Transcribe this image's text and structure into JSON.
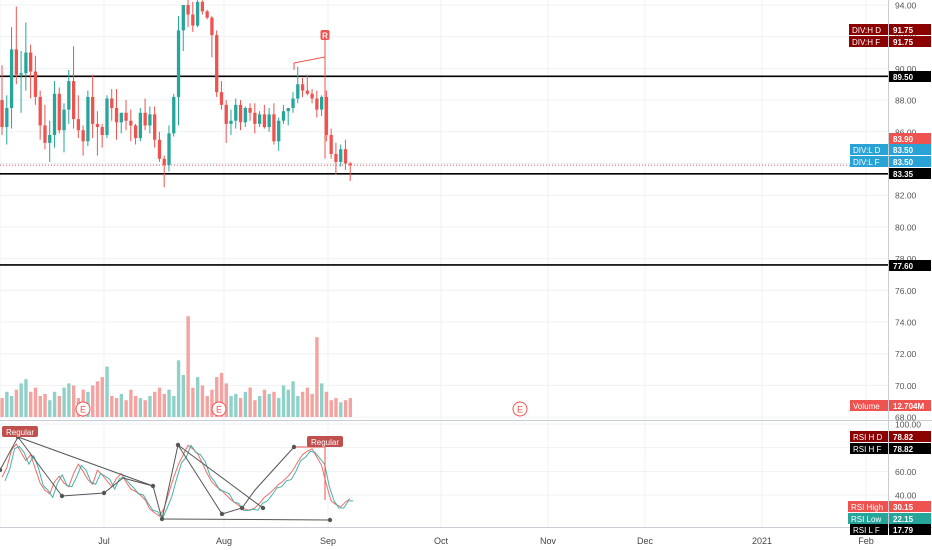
{
  "chart_data": {
    "type": "candlestick",
    "price_axis": {
      "ticks": [
        94,
        92,
        90,
        88,
        86,
        84,
        82,
        80,
        78,
        76,
        74,
        72,
        70,
        68
      ],
      "ylim": [
        67.6,
        94.4
      ]
    },
    "time_axis": [
      "Jul",
      "Aug",
      "Sep",
      "Oct",
      "Nov",
      "Dec",
      "2021",
      "Feb"
    ],
    "candles": [
      [
        88.0,
        90.2,
        85.8,
        86.3
      ],
      [
        86.3,
        88.3,
        85.2,
        87.5
      ],
      [
        87.5,
        92.6,
        86.2,
        91.2
      ],
      [
        91.2,
        93.9,
        89.0,
        89.6
      ],
      [
        89.6,
        91.1,
        87.2,
        89.7
      ],
      [
        89.7,
        92.9,
        88.6,
        91.0
      ],
      [
        91.0,
        91.5,
        88.1,
        89.8
      ],
      [
        89.8,
        90.8,
        87.7,
        88.2
      ],
      [
        88.2,
        88.6,
        85.5,
        86.4
      ],
      [
        86.4,
        87.7,
        84.9,
        85.3
      ],
      [
        85.3,
        86.7,
        84.1,
        85.8
      ],
      [
        85.8,
        89.2,
        85.0,
        88.4
      ],
      [
        88.4,
        88.8,
        85.9,
        86.1
      ],
      [
        86.1,
        87.8,
        84.7,
        87.4
      ],
      [
        87.4,
        89.9,
        86.5,
        89.2
      ],
      [
        89.2,
        91.4,
        86.2,
        86.8
      ],
      [
        86.8,
        88.3,
        85.6,
        86.1
      ],
      [
        86.1,
        86.4,
        84.5,
        85.4
      ],
      [
        85.4,
        88.6,
        85.1,
        88.2
      ],
      [
        88.2,
        89.6,
        85.6,
        86.5
      ],
      [
        86.5,
        87.3,
        84.5,
        86.3
      ],
      [
        86.3,
        86.5,
        85.0,
        85.8
      ],
      [
        85.8,
        88.3,
        85.6,
        88.1
      ],
      [
        88.1,
        88.7,
        86.7,
        87.5
      ],
      [
        87.5,
        88.7,
        85.5,
        86.6
      ],
      [
        86.6,
        87.2,
        85.9,
        87.2
      ],
      [
        87.2,
        88.0,
        86.1,
        86.7
      ],
      [
        86.7,
        87.4,
        85.4,
        86.4
      ],
      [
        86.4,
        86.5,
        85.2,
        85.6
      ],
      [
        85.6,
        87.5,
        85.4,
        87.2
      ],
      [
        87.2,
        88.1,
        86.1,
        86.4
      ],
      [
        86.4,
        87.6,
        85.9,
        87.1
      ],
      [
        87.1,
        87.6,
        85.0,
        85.5
      ],
      [
        85.5,
        86.0,
        84.1,
        84.3
      ],
      [
        84.3,
        84.5,
        82.5,
        83.9
      ],
      [
        83.9,
        86.4,
        83.5,
        85.9
      ],
      [
        85.9,
        88.4,
        85.7,
        88.2
      ],
      [
        88.2,
        93.3,
        86.4,
        92.4
      ],
      [
        92.4,
        94.0,
        91.1,
        94.0
      ],
      [
        94.0,
        94.5,
        92.6,
        93.4
      ],
      [
        93.4,
        94.2,
        92.3,
        92.7
      ],
      [
        92.7,
        94.3,
        92.6,
        94.2
      ],
      [
        94.2,
        94.3,
        93.4,
        93.6
      ],
      [
        93.6,
        93.7,
        93.1,
        93.2
      ],
      [
        93.2,
        93.3,
        90.7,
        92.1
      ],
      [
        92.1,
        92.4,
        88.2,
        88.5
      ],
      [
        88.5,
        89.2,
        87.4,
        87.7
      ],
      [
        87.7,
        88.0,
        85.3,
        86.5
      ],
      [
        86.5,
        87.4,
        85.8,
        86.7
      ],
      [
        86.7,
        88.1,
        86.2,
        87.7
      ],
      [
        87.7,
        88.0,
        86.1,
        86.6
      ],
      [
        86.6,
        87.6,
        86.3,
        87.5
      ],
      [
        87.5,
        87.8,
        86.7,
        87.2
      ],
      [
        87.2,
        87.8,
        85.9,
        86.5
      ],
      [
        86.5,
        87.3,
        86.3,
        87.1
      ],
      [
        87.1,
        87.7,
        86.2,
        86.3
      ],
      [
        86.3,
        87.5,
        86.0,
        87.1
      ],
      [
        87.1,
        87.8,
        85.2,
        85.4
      ],
      [
        85.4,
        86.9,
        84.8,
        86.7
      ],
      [
        86.7,
        87.7,
        86.5,
        87.3
      ],
      [
        87.3,
        87.5,
        86.4,
        87.5
      ],
      [
        87.5,
        88.5,
        87.2,
        88.1
      ],
      [
        88.1,
        90.1,
        87.8,
        89.0
      ],
      [
        89.0,
        89.4,
        88.2,
        88.6
      ],
      [
        88.6,
        89.6,
        88.3,
        88.4
      ],
      [
        88.4,
        88.7,
        87.8,
        88.1
      ],
      [
        88.1,
        88.6,
        86.9,
        87.4
      ],
      [
        87.4,
        88.3,
        87.0,
        88.2
      ],
      [
        88.2,
        88.6,
        85.4,
        85.8
      ],
      [
        85.8,
        86.2,
        84.3,
        84.6
      ],
      [
        84.6,
        85.3,
        83.3,
        84.1
      ],
      [
        84.1,
        85.2,
        83.8,
        84.9
      ],
      [
        84.9,
        85.5,
        83.6,
        84.0
      ],
      [
        84.0,
        84.1,
        82.9,
        83.9
      ]
    ],
    "volume": [
      0.9,
      1.2,
      1.0,
      1.3,
      1.6,
      1.8,
      1.2,
      1.4,
      1.0,
      1.1,
      0.8,
      1.2,
      1.0,
      1.4,
      1.6,
      1.5,
      0.9,
      1.3,
      1.2,
      1.5,
      1.7,
      1.9,
      2.4,
      1.0,
      0.9,
      1.1,
      0.8,
      1.3,
      1.0,
      0.9,
      0.8,
      1.0,
      1.2,
      1.4,
      1.1,
      1.3,
      1.0,
      2.7,
      2.0,
      4.8,
      1.4,
      1.9,
      1.5,
      1.0,
      1.3,
      1.9,
      2.1,
      1.6,
      1.0,
      1.1,
      0.9,
      1.2,
      1.4,
      0.8,
      1.0,
      1.3,
      1.1,
      1.2,
      0.9,
      1.5,
      1.3,
      1.7,
      1.0,
      1.2,
      1.4,
      1.1,
      3.8,
      1.6,
      1.2,
      0.8,
      0.9,
      0.7,
      0.8,
      0.9
    ],
    "rsi": [
      55,
      63,
      78,
      83,
      76,
      69,
      74,
      62,
      50,
      44,
      41,
      51,
      56,
      50,
      47,
      58,
      66,
      60,
      53,
      49,
      61,
      57,
      52,
      47,
      54,
      58,
      51,
      45,
      43,
      40,
      36,
      28,
      25,
      22,
      29,
      42,
      55,
      66,
      74,
      82,
      79,
      75,
      67,
      58,
      51,
      47,
      44,
      40,
      36,
      33,
      30,
      28,
      27,
      29,
      33,
      38,
      41,
      45,
      49,
      52,
      56,
      61,
      68,
      74,
      77,
      79,
      72,
      65,
      49,
      35,
      32,
      30,
      34,
      37
    ],
    "rsi_axis": {
      "ticks": [
        100,
        80,
        60,
        40
      ],
      "ylim": [
        13,
        102
      ]
    },
    "horizontal_lines": [
      89.5,
      83.35,
      77.6
    ],
    "labels": [
      {
        "text": "DIV:H D",
        "value": "91.75",
        "bg": "#8b0000"
      },
      {
        "text": "DIV:H F",
        "value": "91.75",
        "bg": "#8b0000"
      },
      {
        "text": "",
        "value": "89.50",
        "bg": "#000000"
      },
      {
        "text": "",
        "value": "83.90",
        "bg": "#ef5350"
      },
      {
        "text": "DIV:L D",
        "value": "83.50",
        "bg": "#29a3d6"
      },
      {
        "text": "DIV:L F",
        "value": "83.50",
        "bg": "#29a3d6"
      },
      {
        "text": "",
        "value": "83.35",
        "bg": "#000000"
      },
      {
        "text": "",
        "value": "77.60",
        "bg": "#000000"
      },
      {
        "text": "Volume",
        "value": "12.704M",
        "bg": "#ef5350"
      },
      {
        "text": "RSI H D",
        "value": "78.82",
        "bg": "#8b0000"
      },
      {
        "text": "RSI H F",
        "value": "78.82",
        "bg": "#000000"
      },
      {
        "text": "RSI High",
        "value": "30.15",
        "bg": "#ef5350"
      },
      {
        "text": "RSI Low",
        "value": "22.15",
        "bg": "#26a69a"
      },
      {
        "text": "RSI L F",
        "value": "17.79",
        "bg": "#000000"
      }
    ],
    "annotations": {
      "price_marker": "R",
      "divergence_label": "Regular",
      "earnings_marker": "E"
    },
    "colors": {
      "up": "#26a69a",
      "down": "#ef5350",
      "volume_up": "#8fd1c9",
      "volume_down": "#f4a3a0"
    }
  }
}
